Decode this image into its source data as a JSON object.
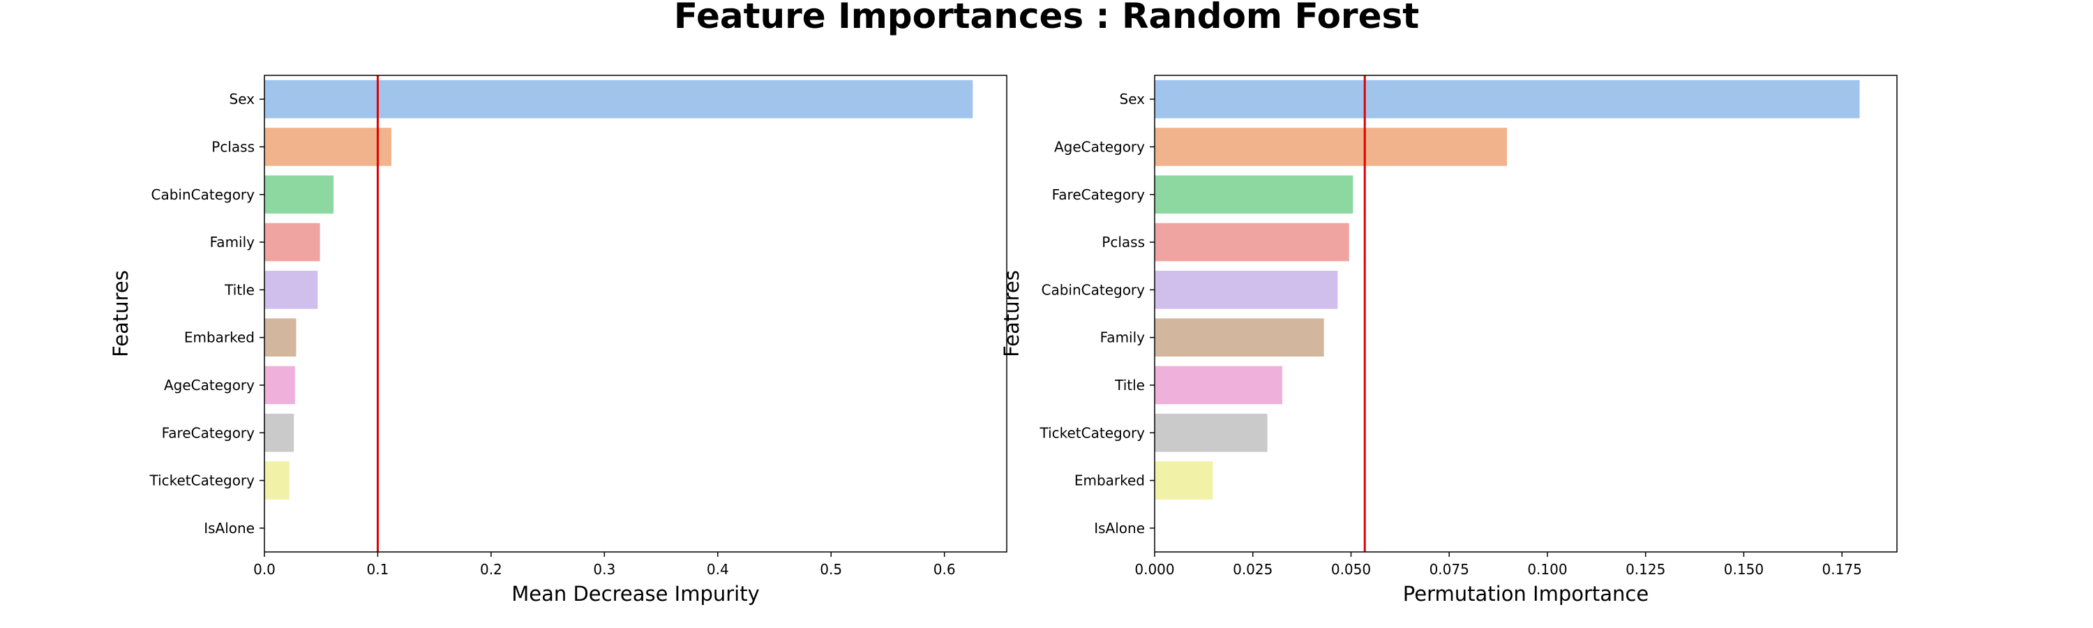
{
  "title": "Feature Importances : Random Forest",
  "chart_data": [
    {
      "type": "bar",
      "orientation": "horizontal",
      "xlabel": "Mean Decrease Impurity",
      "ylabel": "Features",
      "xlim": [
        0,
        0.655
      ],
      "xticks": [
        "0.0",
        "0.1",
        "0.2",
        "0.3",
        "0.4",
        "0.5",
        "0.6"
      ],
      "categories": [
        "Sex",
        "Pclass",
        "CabinCategory",
        "Family",
        "Title",
        "Embarked",
        "AgeCategory",
        "FareCategory",
        "TicketCategory",
        "IsAlone"
      ],
      "values": [
        0.625,
        0.112,
        0.061,
        0.049,
        0.047,
        0.028,
        0.027,
        0.026,
        0.022,
        0.0
      ],
      "reference_line": 0.1,
      "grid": false
    },
    {
      "type": "bar",
      "orientation": "horizontal",
      "xlabel": "Permutation Importance",
      "ylabel": "Features",
      "xlim": [
        0,
        0.189
      ],
      "xticks": [
        "0.000",
        "0.025",
        "0.050",
        "0.075",
        "0.100",
        "0.125",
        "0.150",
        "0.175"
      ],
      "categories": [
        "Sex",
        "AgeCategory",
        "FareCategory",
        "Pclass",
        "CabinCategory",
        "Family",
        "Title",
        "TicketCategory",
        "Embarked",
        "IsAlone"
      ],
      "values": [
        0.1795,
        0.0897,
        0.0505,
        0.0495,
        0.0466,
        0.0431,
        0.0325,
        0.0287,
        0.0148,
        0.0
      ],
      "reference_line": 0.0535,
      "grid": false
    }
  ],
  "colors": {
    "bars": [
      "#a1c4ed",
      "#f0b38c",
      "#8dd8a1",
      "#f0a4a2",
      "#d0beed",
      "#d3b69e",
      "#efb1dc",
      "#cacaca",
      "#f1f1a7",
      "#a8dde6"
    ],
    "reference_line": "#e00000"
  }
}
